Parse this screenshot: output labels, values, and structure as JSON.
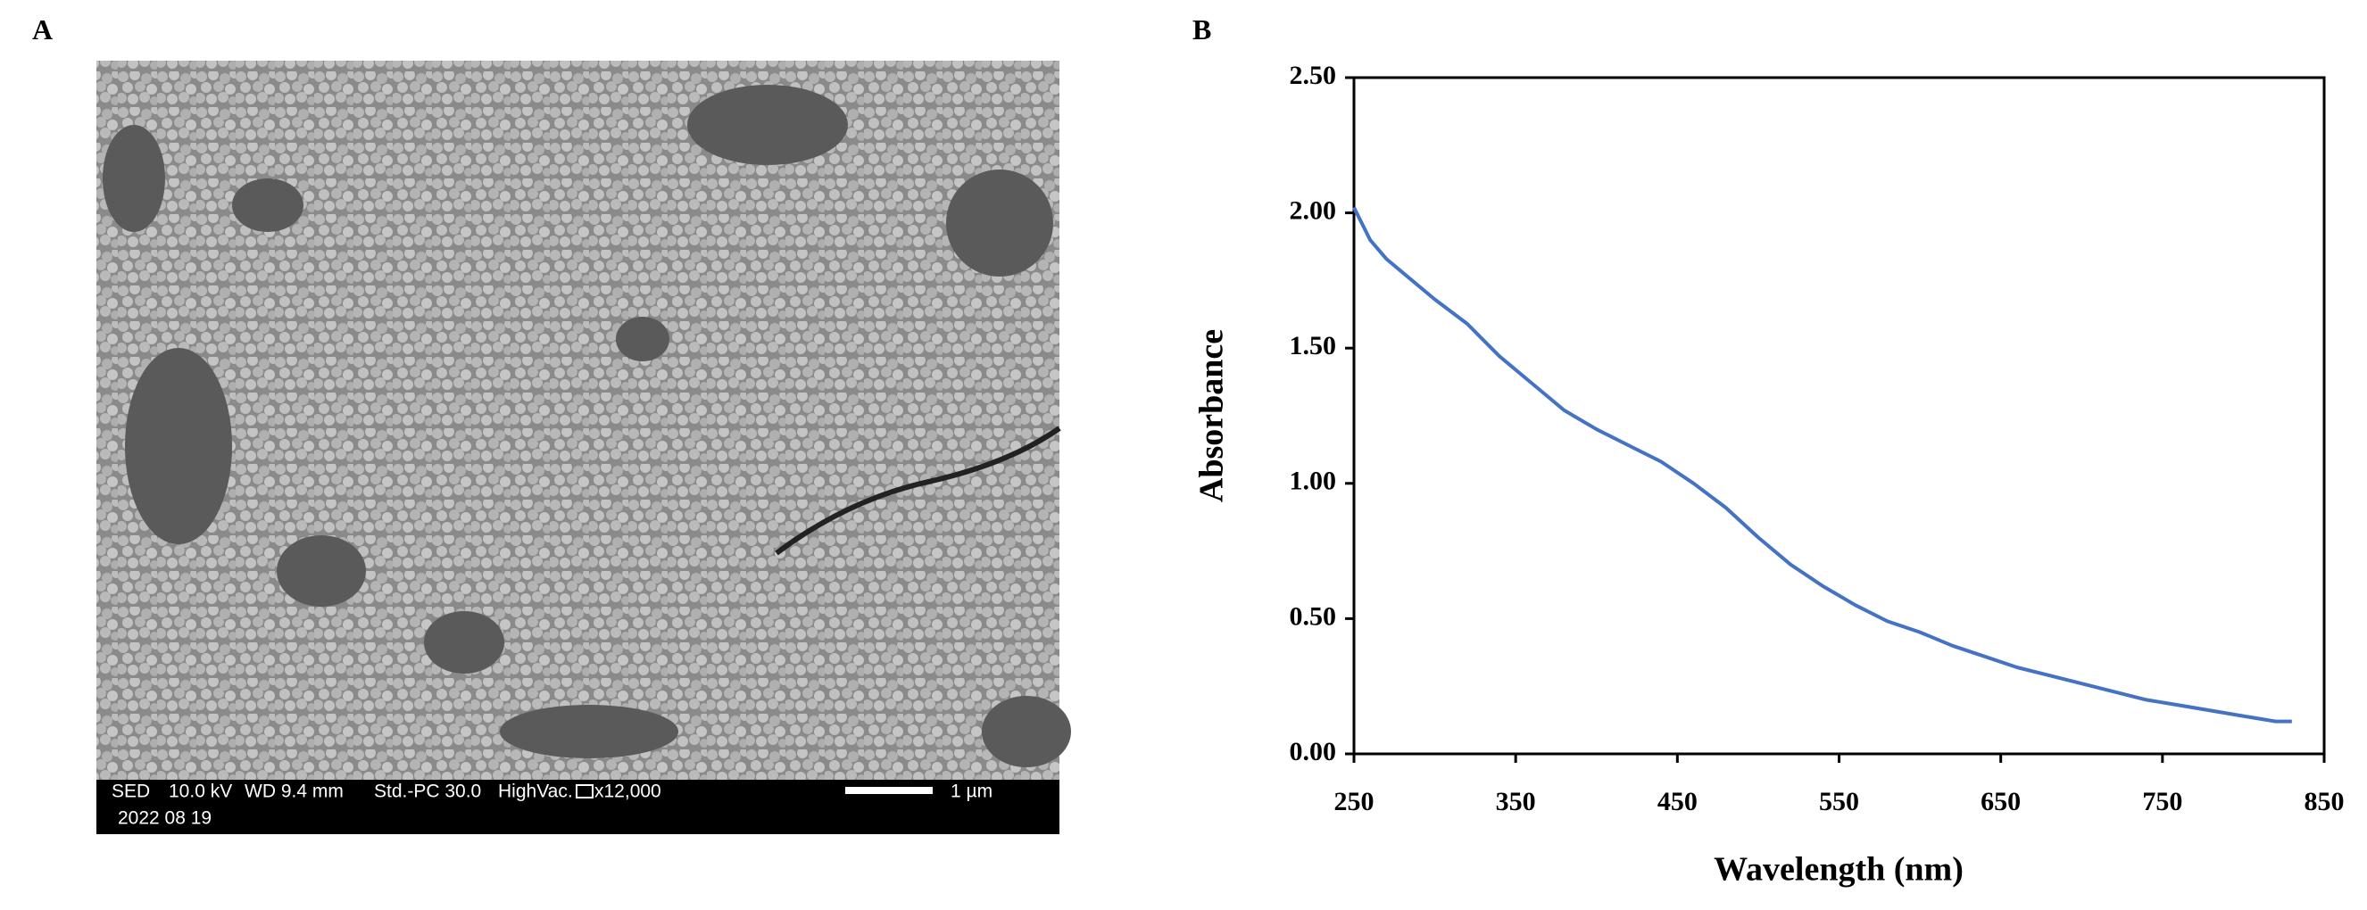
{
  "panel_labels": [
    "A",
    "B"
  ],
  "sem_image": {
    "info": [
      "SED",
      "10.0 kV",
      "WD 9.4 mm",
      "Std.-PC 30.0",
      "HighVac.",
      "x12,000"
    ],
    "date": "2022 08 19",
    "scale_bar": "1 µm"
  },
  "chart_data": {
    "type": "line",
    "x_label": "Wavelength (nm)",
    "y_label": "Absorbance",
    "color": "#4472c4",
    "x": [
      250,
      260,
      270,
      280,
      300,
      320,
      340,
      360,
      380,
      400,
      420,
      440,
      460,
      480,
      500,
      520,
      540,
      560,
      580,
      600,
      620,
      640,
      660,
      680,
      700,
      720,
      740,
      760,
      780,
      800,
      820,
      830
    ],
    "values": [
      2.02,
      1.9,
      1.83,
      1.78,
      1.68,
      1.59,
      1.47,
      1.37,
      1.27,
      1.2,
      1.14,
      1.08,
      1.0,
      0.91,
      0.8,
      0.7,
      0.62,
      0.55,
      0.49,
      0.45,
      0.4,
      0.36,
      0.32,
      0.29,
      0.26,
      0.23,
      0.2,
      0.18,
      0.16,
      0.14,
      0.12,
      0.12
    ],
    "xlim": [
      250,
      850
    ],
    "xticks": [
      250,
      350,
      450,
      550,
      650,
      750,
      850
    ],
    "ylim": [
      0,
      2.5
    ],
    "yticks": [
      {
        "value": 0,
        "label": "0.00"
      },
      {
        "value": 0.5,
        "label": "0.50"
      },
      {
        "value": 1,
        "label": "1.00"
      },
      {
        "value": 1.5,
        "label": "1.50"
      },
      {
        "value": 2,
        "label": "2.00"
      },
      {
        "value": 2.5,
        "label": "2.50"
      }
    ]
  }
}
